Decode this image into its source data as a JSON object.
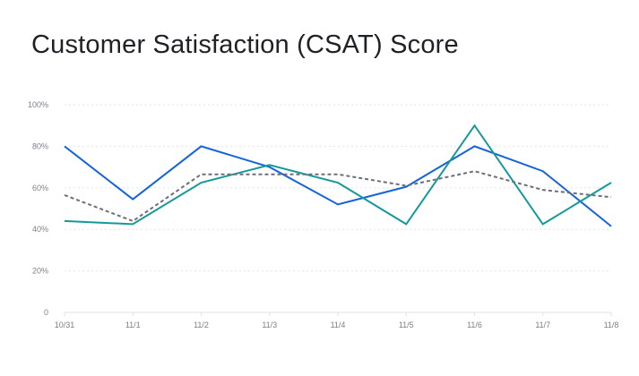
{
  "title": "Customer Satisfaction (CSAT) Score",
  "chart_data": {
    "type": "line",
    "title": "Customer Satisfaction (CSAT) Score",
    "xlabel": "",
    "ylabel": "",
    "categories": [
      "10/31",
      "11/1",
      "11/2",
      "11/3",
      "11/4",
      "11/5",
      "11/6",
      "11/7",
      "11/8"
    ],
    "ylim": [
      0,
      100
    ],
    "yticks": [
      {
        "value": 0,
        "label": "0"
      },
      {
        "value": 20,
        "label": "20%"
      },
      {
        "value": 40,
        "label": "40%"
      },
      {
        "value": 60,
        "label": "60%"
      },
      {
        "value": 80,
        "label": "80%"
      },
      {
        "value": 100,
        "label": "100%"
      }
    ],
    "grid": true,
    "legend": "none",
    "series": [
      {
        "color": "#1565d8",
        "style": "solid",
        "values": [
          80,
          54.5,
          80,
          70,
          52,
          60.5,
          80,
          68,
          41.5
        ]
      },
      {
        "color": "#14999a",
        "style": "solid",
        "values": [
          44,
          42.5,
          62.5,
          71,
          62.5,
          42.5,
          90,
          42.5,
          62.5
        ]
      },
      {
        "color": "#6b6f7c",
        "style": "dashed",
        "values": [
          56.5,
          44,
          66.5,
          66.5,
          66.5,
          61,
          68,
          59,
          55.5
        ]
      }
    ]
  }
}
